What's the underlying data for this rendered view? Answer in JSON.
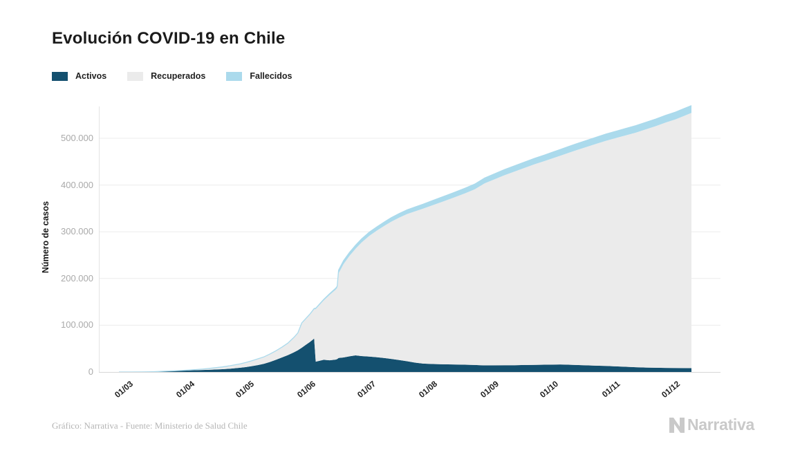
{
  "page": {
    "title": "Evolución COVID-19 en Chile",
    "background": "#ffffff"
  },
  "legend": {
    "items": [
      {
        "label": "Activos",
        "color": "#14506f"
      },
      {
        "label": "Recuperados",
        "color": "#ebebeb"
      },
      {
        "label": "Fallecidos",
        "color": "#abdaec"
      }
    ]
  },
  "colors": {
    "grid": "#ececec",
    "axis_line": "#e3e3e3",
    "baseline": "#d6d6d6",
    "y_tick_text": "#a9a9a9",
    "x_tick_text": "#1f1f1f",
    "credit_text": "#b5b5b5",
    "logo_gray": "#c9c9c9"
  },
  "chart_data": {
    "type": "area",
    "stacked": true,
    "title": "Evolución COVID-19 en Chile",
    "xlabel": "",
    "ylabel": "Número de casos",
    "ylim": [
      0,
      580000
    ],
    "grid": true,
    "legend_position": "top-left",
    "x_unit": "days since 2020-03-01",
    "x": [
      0,
      6,
      12,
      17,
      21,
      25,
      28,
      31,
      35,
      38,
      42,
      45,
      49,
      52,
      56,
      61,
      64,
      67,
      70,
      73,
      76,
      79,
      82,
      85,
      88,
      90,
      92,
      94,
      96,
      97.5,
      98.2,
      99,
      103,
      106,
      109,
      109.8,
      110.5,
      113,
      116,
      119,
      122,
      126,
      130,
      134,
      137,
      141,
      145,
      149,
      153,
      158,
      163,
      168,
      174,
      179,
      184,
      189,
      194,
      199,
      204,
      209,
      214,
      218,
      222,
      226,
      230,
      235,
      240,
      245,
      250,
      255,
      260,
      265,
      270,
      275,
      280,
      284,
      288
    ],
    "series": [
      {
        "name": "Activos",
        "color": "#14506f",
        "values": [
          0,
          40,
          150,
          500,
          1100,
          1700,
          2200,
          2750,
          3300,
          3700,
          4200,
          4600,
          5300,
          5900,
          7000,
          9000,
          10500,
          12500,
          14800,
          17500,
          21500,
          26000,
          31000,
          36000,
          42000,
          46500,
          52000,
          58000,
          64000,
          69000,
          71500,
          22000,
          26000,
          25000,
          26500,
          27500,
          30000,
          31000,
          33500,
          35500,
          34000,
          33000,
          31500,
          29500,
          28000,
          25500,
          23000,
          20000,
          18000,
          17000,
          16500,
          16000,
          15500,
          15000,
          14000,
          14200,
          14400,
          14500,
          15000,
          15200,
          15500,
          15800,
          16000,
          15500,
          15000,
          14200,
          13500,
          13000,
          12000,
          11000,
          10200,
          9500,
          9000,
          8700,
          8500,
          8300,
          8200
        ]
      },
      {
        "name": "Recuperados",
        "color": "#ebebeb",
        "values": [
          0,
          0,
          10,
          20,
          60,
          200,
          260,
          320,
          800,
          1300,
          2000,
          2800,
          3900,
          4800,
          6300,
          8100,
          9700,
          11500,
          13100,
          14500,
          16500,
          18800,
          21500,
          25000,
          31000,
          36000,
          52000,
          55000,
          58000,
          61000,
          62500,
          112500,
          127000,
          140000,
          149500,
          152500,
          181000,
          200000,
          215000,
          228000,
          242800,
          258500,
          271700,
          284400,
          293600,
          304800,
          315000,
          323800,
          331500,
          340100,
          348200,
          356400,
          366600,
          375900,
          389700,
          398200,
          406700,
          414300,
          421500,
          429100,
          435600,
          441100,
          446700,
          453000,
          459300,
          466900,
          474400,
          481700,
          488500,
          495300,
          501900,
          509500,
          516800,
          524900,
          532000,
          539100,
          546100
        ]
      },
      {
        "name": "Fallecidos",
        "color": "#abdaec",
        "values": [
          0,
          0,
          0,
          1,
          3,
          6,
          9,
          16,
          27,
          43,
          65,
          92,
          120,
          147,
          180,
          230,
          270,
          312,
          368,
          430,
          500,
          580,
          680,
          800,
          920,
          1000,
          1100,
          1300,
          1550,
          1750,
          1850,
          1950,
          2300,
          2650,
          3000,
          3300,
          7000,
          7150,
          7300,
          7450,
          7600,
          7800,
          8000,
          8300,
          8500,
          8800,
          9000,
          9300,
          9500,
          9900,
          10300,
          10600,
          10900,
          11100,
          11300,
          11600,
          11900,
          12200,
          12500,
          12700,
          12900,
          13100,
          13300,
          13500,
          13700,
          13900,
          14100,
          14300,
          14500,
          14700,
          14900,
          15000,
          15200,
          15400,
          15500,
          15600,
          15700
        ]
      }
    ],
    "x_ticks": [
      {
        "day": 0,
        "label": "01/03"
      },
      {
        "day": 31,
        "label": "01/04"
      },
      {
        "day": 61,
        "label": "01/05"
      },
      {
        "day": 92,
        "label": "01/06"
      },
      {
        "day": 122,
        "label": "01/07"
      },
      {
        "day": 153,
        "label": "01/08"
      },
      {
        "day": 184,
        "label": "01/09"
      },
      {
        "day": 214,
        "label": "01/10"
      },
      {
        "day": 245,
        "label": "01/11"
      },
      {
        "day": 275,
        "label": "01/12"
      }
    ],
    "y_ticks": [
      {
        "value": 0,
        "label": "0"
      },
      {
        "value": 100000,
        "label": "100.000"
      },
      {
        "value": 200000,
        "label": "200.000"
      },
      {
        "value": 300000,
        "label": "300.000"
      },
      {
        "value": 400000,
        "label": "400.000"
      },
      {
        "value": 500000,
        "label": "500.000"
      }
    ]
  },
  "footer": {
    "credit": "Gráfico: Narrativa - Fuente: Ministerio de Salud Chile",
    "logo_text": "Narrativa"
  }
}
